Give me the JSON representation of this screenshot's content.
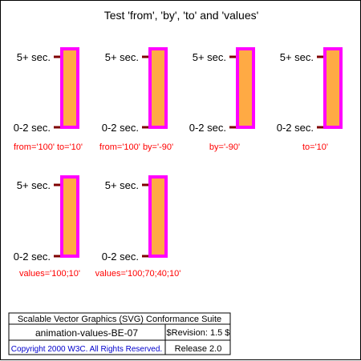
{
  "title": "Test 'from', 'by', 'to' and 'values'",
  "labels": {
    "top": "5+ sec.",
    "bottom": "0-2 sec."
  },
  "panels": [
    {
      "caption": "from='100' to='10'"
    },
    {
      "caption": "from='100' by='-90'"
    },
    {
      "caption": "by='-90'"
    },
    {
      "caption": "to='10'"
    },
    {
      "caption": "values='100;10'"
    },
    {
      "caption": "values='100;70;40;10'"
    }
  ],
  "footer": {
    "suite": "Scalable Vector Graphics (SVG) Conformance Suite",
    "test_name": "animation-values-BE-07",
    "revision": "$Revision: 1.5 $",
    "copyright": "Copyright 2000 W3C. All Rights Reserved.",
    "release": "Release 2.0"
  },
  "colors": {
    "bar_fill": "#ffaa44",
    "bar_stroke": "#ff00ff",
    "tick": "#800000",
    "caption": "#ff0000",
    "copyright": "#0000cc"
  }
}
